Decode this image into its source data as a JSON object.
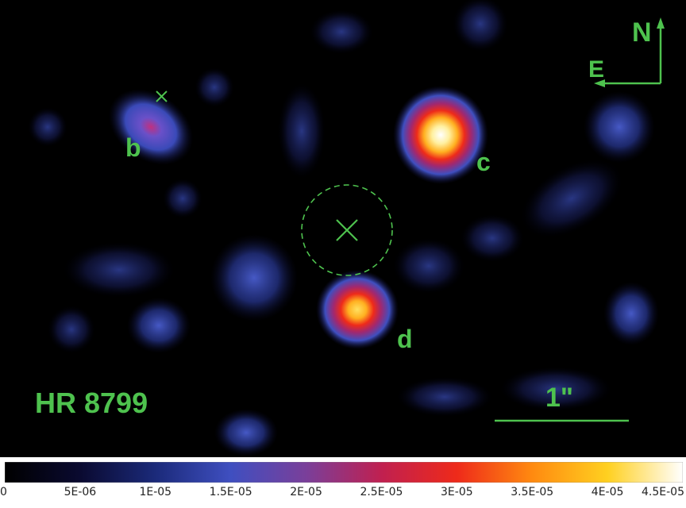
{
  "image": {
    "target_name": "HR 8799",
    "planets": [
      {
        "label": "b"
      },
      {
        "label": "c"
      },
      {
        "label": "d"
      }
    ],
    "compass": {
      "north": "N",
      "east": "E"
    },
    "scale_bar": {
      "label": "1\""
    },
    "colors": {
      "annotation": "#4ec24e",
      "background": "#000000"
    }
  },
  "colorbar": {
    "tick_labels": [
      "0",
      "5E-06",
      "1E-05",
      "1.5E-05",
      "2E-05",
      "2.5E-05",
      "3E-05",
      "3.5E-05",
      "4E-05",
      "4.5E-05"
    ],
    "min": 0,
    "max": 4.5e-05,
    "colormap": [
      "#000000",
      "#0a0a30",
      "#1b2a7a",
      "#3f4fc0",
      "#7a3f9a",
      "#c02050",
      "#ee2a1a",
      "#ff8a10",
      "#ffd020",
      "#ffffff"
    ]
  }
}
